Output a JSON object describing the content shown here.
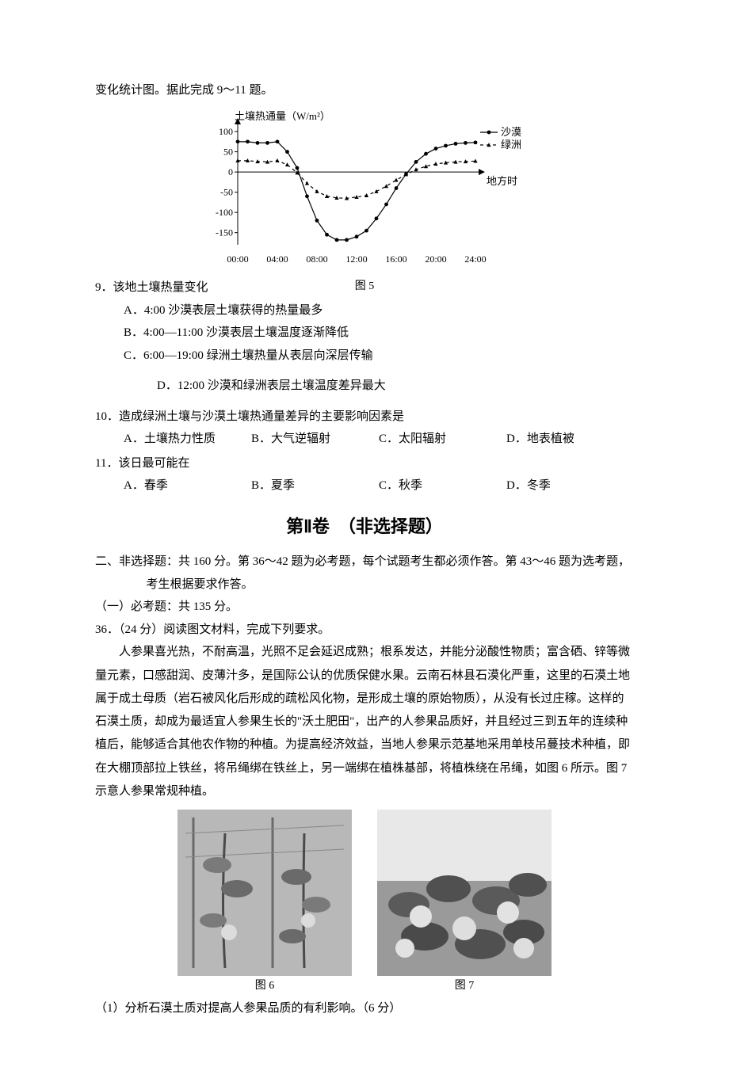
{
  "intro": "变化统计图。据此完成 9～11 题。",
  "chart": {
    "type": "line",
    "y_label": "土壤热通量（W/m²）",
    "x_label": "地方时",
    "x_ticks": [
      "00:00",
      "04:00",
      "08:00",
      "12:00",
      "16:00",
      "20:00",
      "24:00"
    ],
    "y_ticks": [
      -150,
      -100,
      -50,
      0,
      50,
      100
    ],
    "ylim": [
      -180,
      110
    ],
    "xlim": [
      0,
      24
    ],
    "series": [
      {
        "name": "沙漠",
        "marker": "circle",
        "dash": "none",
        "color": "#000000",
        "data": [
          [
            0,
            75
          ],
          [
            1,
            75
          ],
          [
            2,
            72
          ],
          [
            3,
            72
          ],
          [
            4,
            75
          ],
          [
            5,
            50
          ],
          [
            6,
            10
          ],
          [
            7,
            -60
          ],
          [
            8,
            -120
          ],
          [
            9,
            -155
          ],
          [
            10,
            -168
          ],
          [
            11,
            -168
          ],
          [
            12,
            -160
          ],
          [
            13,
            -145
          ],
          [
            14,
            -115
          ],
          [
            15,
            -80
          ],
          [
            16,
            -40
          ],
          [
            17,
            -5
          ],
          [
            18,
            25
          ],
          [
            19,
            45
          ],
          [
            20,
            58
          ],
          [
            21,
            65
          ],
          [
            22,
            70
          ],
          [
            23,
            72
          ],
          [
            24,
            73
          ]
        ]
      },
      {
        "name": "绿洲",
        "marker": "triangle",
        "dash": "4,4",
        "color": "#000000",
        "data": [
          [
            0,
            28
          ],
          [
            1,
            28
          ],
          [
            2,
            26
          ],
          [
            3,
            25
          ],
          [
            4,
            28
          ],
          [
            5,
            18
          ],
          [
            6,
            -2
          ],
          [
            7,
            -28
          ],
          [
            8,
            -48
          ],
          [
            9,
            -60
          ],
          [
            10,
            -64
          ],
          [
            11,
            -65
          ],
          [
            12,
            -62
          ],
          [
            13,
            -58
          ],
          [
            14,
            -48
          ],
          [
            15,
            -35
          ],
          [
            16,
            -20
          ],
          [
            17,
            -6
          ],
          [
            18,
            6
          ],
          [
            19,
            14
          ],
          [
            20,
            20
          ],
          [
            21,
            23
          ],
          [
            22,
            25
          ],
          [
            23,
            26
          ],
          [
            24,
            27
          ]
        ]
      }
    ],
    "axis_color": "#000000",
    "grid": false,
    "font_size_label": 13,
    "font_size_tick": 12
  },
  "fig5_caption": "图 5",
  "q9": {
    "stem": "9．该地土壤热量变化",
    "A": "A．4:00 沙漠表层土壤获得的热量最多",
    "B": "B．4:00—11:00 沙漠表层土壤温度逐渐降低",
    "C": "C．6:00—19:00 绿洲土壤热量从表层向深层传输",
    "D": "D．12:00 沙漠和绿洲表层土壤温度差异最大"
  },
  "q10": {
    "stem": "10．造成绿洲土壤与沙漠土壤热通量差异的主要影响因素是",
    "A": "A．土壤热力性质",
    "B": "B．大气逆辐射",
    "C": "C．太阳辐射",
    "D": "D．地表植被"
  },
  "q11": {
    "stem": "11．该日最可能在",
    "A": "A．春季",
    "B": "B．夏季",
    "C": "C．秋季",
    "D": "D．冬季"
  },
  "section2_title": "第Ⅱ卷　（非选择题）",
  "part2_heading": "二、非选择题：共 160 分。第 36～42 题为必考题，每个试题考生都必须作答。第 43～46 题为选考题，考生根据要求作答。",
  "required_heading": "（一）必考题：共 135 分。",
  "q36_stem": "36．（24 分）阅读图文材料，完成下列要求。",
  "q36_passage": "人参果喜光热，不耐高温，光照不足会延迟成熟；根系发达，并能分泌酸性物质；富含硒、锌等微量元素，口感甜润、皮薄汁多，是国际公认的优质保健水果。云南石林县石漠化严重，这里的石漠土地属于成土母质（岩石被风化后形成的疏松风化物，是形成土壤的原始物质），从没有长过庄稼。这样的石漠土质，却成为最适宜人参果生长的\"沃土肥田\"，出产的人参果品质好，并且经过三到五年的连续种植后，能够适合其他农作物的种植。为提高经济效益，当地人参果示范基地采用单枝吊蔓技术种植，即在大棚顶部拉上铁丝，将吊绳绑在铁丝上，另一端绑在植株基部，将植株绕在吊绳，如图 6 所示。图 7 示意人参果常规种植。",
  "fig6_caption": "图 6",
  "fig7_caption": "图 7",
  "q36_sub1": "（1）分析石漠土质对提高人参果品质的有利影响。（6 分）"
}
